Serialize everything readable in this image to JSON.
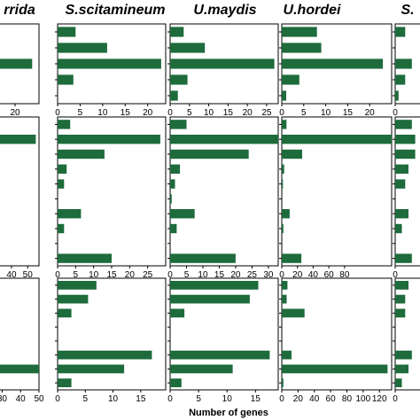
{
  "bar_color": "#1e6b3c",
  "x_axis_label": "Number of genes",
  "chart_data": [
    {
      "type": "bar",
      "orientation": "horizontal",
      "title": "rrida",
      "row": 0,
      "col": 0,
      "xlim": [
        0,
        27
      ],
      "xticks": [
        10,
        20
      ],
      "values": [
        3.5,
        0,
        25,
        0,
        0
      ]
    },
    {
      "type": "bar",
      "orientation": "horizontal",
      "title": "S.scitamineum",
      "row": 0,
      "col": 1,
      "xlim": [
        0,
        24
      ],
      "xticks": [
        0,
        5,
        10,
        15,
        20
      ],
      "values": [
        4,
        11,
        23,
        3.5,
        0
      ]
    },
    {
      "type": "bar",
      "orientation": "horizontal",
      "title": "U.maydis",
      "row": 0,
      "col": 2,
      "xlim": [
        0,
        28
      ],
      "xticks": [
        0,
        5,
        10,
        15,
        20,
        25
      ],
      "values": [
        3.5,
        9,
        27,
        4.5,
        2
      ]
    },
    {
      "type": "bar",
      "orientation": "horizontal",
      "title": "U.hordei",
      "row": 0,
      "col": 3,
      "xlim": [
        0,
        25
      ],
      "xticks": [
        0,
        5,
        10,
        15,
        20
      ],
      "values": [
        8,
        9,
        23,
        4,
        1
      ]
    },
    {
      "type": "bar",
      "orientation": "horizontal",
      "title": "S.",
      "row": 0,
      "col": 4,
      "xlim": [
        0,
        25
      ],
      "xticks": [
        0
      ],
      "values": [
        3,
        0,
        5,
        3,
        1
      ]
    },
    {
      "type": "bar",
      "orientation": "horizontal",
      "title": "",
      "row": 1,
      "col": 0,
      "xlim": [
        0,
        57
      ],
      "xticks": [
        30,
        40,
        50
      ],
      "values": [
        0,
        55,
        0,
        0,
        0,
        0,
        0,
        0,
        0,
        0
      ]
    },
    {
      "type": "bar",
      "orientation": "horizontal",
      "title": "",
      "row": 1,
      "col": 1,
      "xlim": [
        0,
        30
      ],
      "xticks": [
        0,
        5,
        10,
        15,
        20,
        25
      ],
      "values": [
        3.5,
        28.5,
        13,
        2.5,
        1.8,
        0,
        6.5,
        1.8,
        0,
        15
      ]
    },
    {
      "type": "bar",
      "orientation": "horizontal",
      "title": "",
      "row": 1,
      "col": 2,
      "xlim": [
        0,
        33
      ],
      "xticks": [
        0,
        5,
        10,
        15,
        20,
        25,
        30
      ],
      "values": [
        5,
        33,
        24,
        3,
        1.5,
        0.5,
        7.5,
        2,
        0,
        20
      ]
    },
    {
      "type": "bar",
      "orientation": "horizontal",
      "title": "",
      "row": 1,
      "col": 3,
      "xlim": [
        0,
        140
      ],
      "xticks": [
        0,
        20,
        40,
        60,
        80
      ],
      "values": [
        6,
        140,
        26,
        3,
        1.5,
        0,
        10,
        2,
        0,
        25
      ]
    },
    {
      "type": "bar",
      "orientation": "horizontal",
      "title": "",
      "row": 1,
      "col": 4,
      "xlim": [
        0,
        25
      ],
      "xticks": [
        0
      ],
      "values": [
        5,
        6,
        6,
        4,
        3,
        0,
        4,
        2,
        0,
        5
      ]
    },
    {
      "type": "bar",
      "orientation": "horizontal",
      "title": "",
      "row": 2,
      "col": 0,
      "xlim": [
        0,
        50
      ],
      "xticks": [
        30,
        40,
        50
      ],
      "values": [
        0,
        0,
        28,
        0,
        0,
        0,
        50,
        0
      ]
    },
    {
      "type": "bar",
      "orientation": "horizontal",
      "title": "",
      "row": 2,
      "col": 1,
      "xlim": [
        0,
        19.5
      ],
      "xticks": [
        0,
        5,
        10,
        15
      ],
      "values": [
        7,
        5.5,
        2.5,
        0,
        0,
        17,
        12,
        2.5
      ]
    },
    {
      "type": "bar",
      "orientation": "horizontal",
      "title": "",
      "row": 2,
      "col": 2,
      "xlim": [
        0,
        19
      ],
      "xticks": [
        0,
        5,
        10,
        15
      ],
      "values": [
        15.5,
        14,
        2.5,
        0,
        0,
        17.5,
        11,
        2
      ]
    },
    {
      "type": "bar",
      "orientation": "horizontal",
      "title": "",
      "row": 2,
      "col": 3,
      "xlim": [
        0,
        135
      ],
      "xticks": [
        0,
        20,
        40,
        60,
        80,
        100,
        120
      ],
      "values": [
        7,
        6,
        28,
        0,
        0,
        12,
        130,
        2
      ]
    },
    {
      "type": "bar",
      "orientation": "horizontal",
      "title": "",
      "row": 2,
      "col": 4,
      "xlim": [
        0,
        25
      ],
      "xticks": [
        0
      ],
      "values": [
        4,
        3,
        3,
        0,
        0,
        5,
        4,
        2
      ]
    }
  ]
}
